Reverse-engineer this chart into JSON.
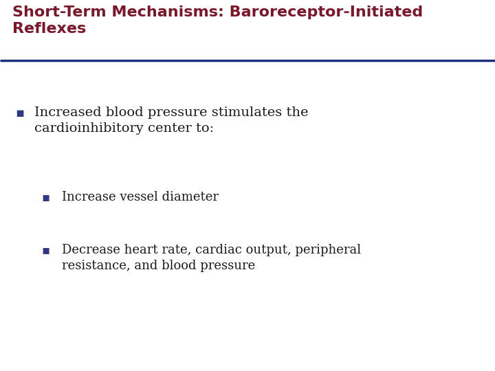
{
  "title_line1": "Short-Term Mechanisms: Baroreceptor-Initiated",
  "title_line2": "Reflexes",
  "title_color": "#7B1728",
  "title_fontsize": 16,
  "title_bold": true,
  "divider_color": "#1F2D7B",
  "divider_linewidth": 2.5,
  "background_color": "#FFFFFF",
  "bullet_color": "#2E3A87",
  "bullet1_text_line1": "Increased blood pressure stimulates the",
  "bullet1_text_line2": "cardioinhibitory center to:",
  "bullet1_fontsize": 14,
  "bullet2_text": "Increase vessel diameter",
  "bullet2_fontsize": 13,
  "bullet3_text_line1": "Decrease heart rate, cardiac output, peripheral",
  "bullet3_text_line2": "resistance, and blood pressure",
  "bullet3_fontsize": 13,
  "body_text_color": "#1A1A1A",
  "fig_width": 7.2,
  "fig_height": 5.4,
  "dpi": 100
}
